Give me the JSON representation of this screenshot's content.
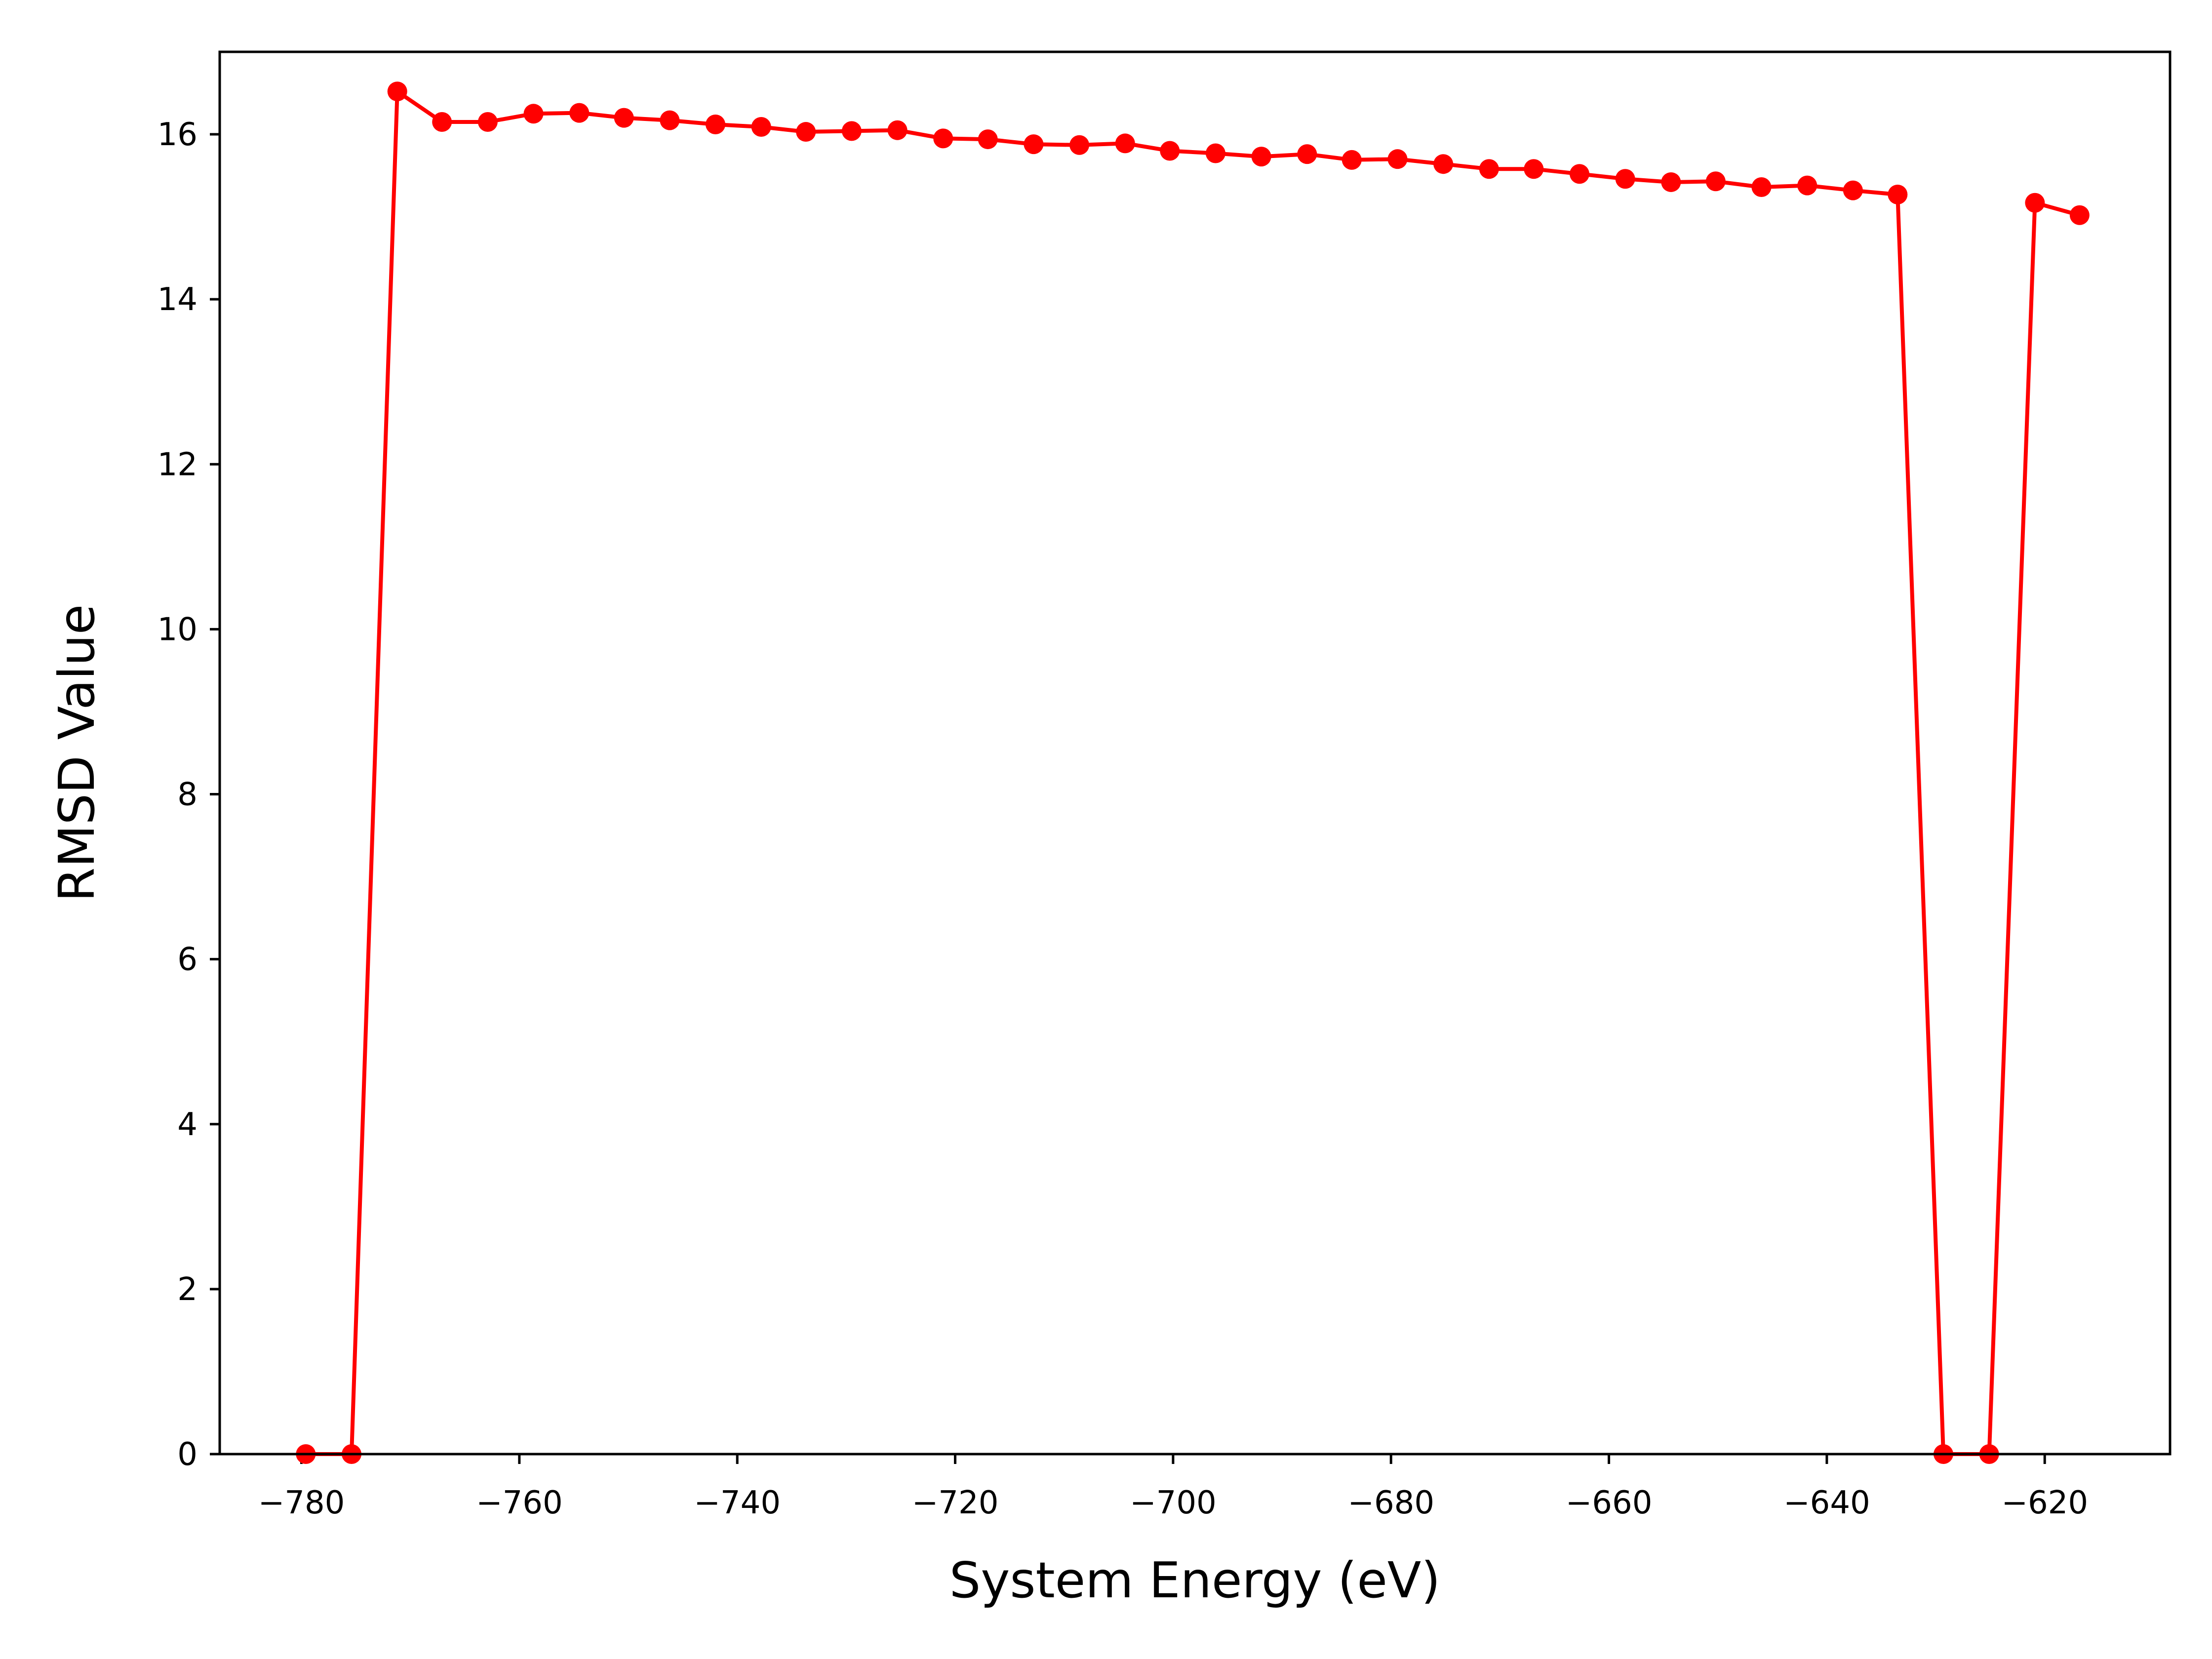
{
  "chart_data": {
    "type": "line",
    "title": "",
    "xlabel": "System Energy (eV)",
    "ylabel": "RMSD Value",
    "xlim": [
      -787.5,
      -608.5
    ],
    "ylim": [
      0,
      17
    ],
    "xticks": [
      -780,
      -760,
      -740,
      -720,
      -700,
      -680,
      -660,
      -640,
      -620
    ],
    "yticks": [
      0,
      2,
      4,
      6,
      8,
      10,
      12,
      14,
      16
    ],
    "xtick_labels": [
      "−780",
      "−760",
      "−740",
      "−720",
      "−700",
      "−680",
      "−660",
      "−640",
      "−620"
    ],
    "ytick_labels": [
      "0",
      "2",
      "4",
      "6",
      "8",
      "10",
      "12",
      "14",
      "16"
    ],
    "grid": false,
    "legend": false,
    "color": "#ff0000",
    "marker": "circle",
    "series": [
      {
        "x": [
          -779.6,
          -775.4,
          -771.2,
          -767.1,
          -762.9,
          -758.7,
          -754.5,
          -750.4,
          -746.2,
          -742.0,
          -737.8,
          -733.7,
          -729.5,
          -725.3,
          -721.1,
          -717.0,
          -712.8,
          -708.6,
          -704.4,
          -700.3,
          -696.1,
          -691.9,
          -687.7,
          -683.6,
          -679.4,
          -675.2,
          -671.0,
          -666.9,
          -662.7,
          -658.5,
          -654.3,
          -650.2,
          -646.0,
          -641.8,
          -637.6,
          -633.5,
          -629.3,
          -625.1,
          -620.9,
          -616.8
        ],
        "y": [
          0,
          0,
          16.52,
          16.15,
          16.15,
          16.25,
          16.26,
          16.2,
          16.17,
          16.12,
          16.09,
          16.03,
          16.04,
          16.05,
          15.95,
          15.94,
          15.88,
          15.87,
          15.89,
          15.8,
          15.77,
          15.73,
          15.76,
          15.69,
          15.7,
          15.64,
          15.58,
          15.58,
          15.52,
          15.46,
          15.42,
          15.43,
          15.36,
          15.38,
          15.32,
          15.27,
          0,
          0,
          15.17,
          15.02
        ]
      }
    ]
  }
}
